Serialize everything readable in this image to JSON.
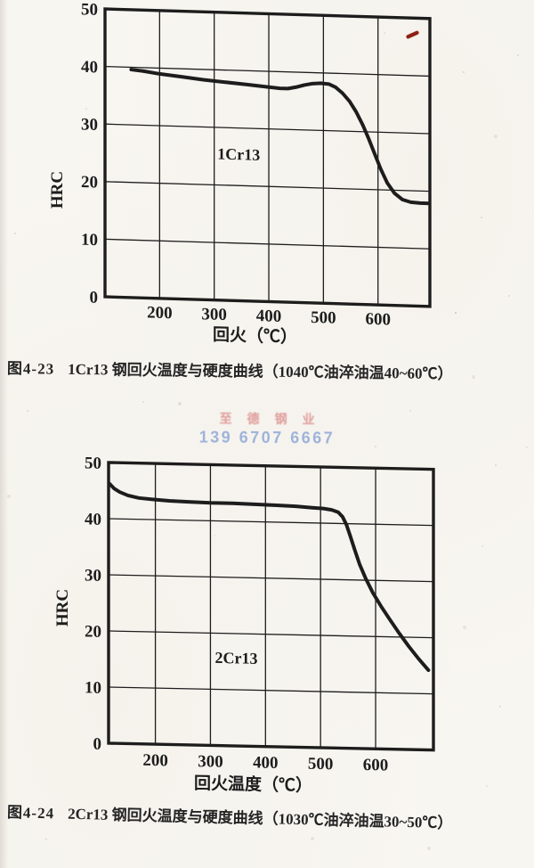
{
  "page": {
    "paper_color": "#f8f6f1",
    "ink_color": "#1d1d1d"
  },
  "chart_data": [
    {
      "type": "line",
      "title": "1Cr13 钢回火温度与硬度曲线",
      "xlabel": "回火（℃）",
      "ylabel": "HRC",
      "xlim": [
        100,
        695
      ],
      "ylim": [
        0,
        50
      ],
      "xticks": [
        200,
        300,
        400,
        500,
        600
      ],
      "yticks": [
        0,
        10,
        20,
        30,
        40,
        50
      ],
      "grid": true,
      "legend_position": "none",
      "series_label": {
        "text": "1Cr13",
        "x": 345,
        "y": 24.5
      },
      "series": [
        {
          "name": "1Cr13",
          "x": [
            148,
            170,
            200,
            240,
            280,
            320,
            360,
            395,
            420,
            435,
            450,
            465,
            480,
            495,
            510,
            522,
            535,
            548,
            560,
            572,
            583,
            594,
            605,
            617,
            630,
            645,
            660,
            677,
            693
          ],
          "y": [
            39.6,
            39.4,
            39.0,
            38.6,
            38.2,
            37.9,
            37.6,
            37.3,
            37.1,
            37.1,
            37.4,
            37.8,
            38.1,
            38.2,
            38.1,
            37.6,
            36.6,
            35.2,
            33.4,
            31.2,
            28.8,
            26.2,
            23.6,
            21.2,
            19.5,
            18.4,
            18.0,
            17.9,
            17.9
          ]
        }
      ]
    },
    {
      "type": "line",
      "title": "2Cr13 钢回火温度与硬度曲线",
      "xlabel": "回火温度（℃）",
      "ylabel": "HRC",
      "xlim": [
        115,
        705
      ],
      "ylim": [
        0,
        50
      ],
      "xticks": [
        200,
        300,
        400,
        500,
        600
      ],
      "yticks": [
        0,
        10,
        20,
        30,
        40,
        50
      ],
      "grid": true,
      "legend_position": "none",
      "series_label": {
        "text": "2Cr13",
        "x": 347,
        "y": 14.7
      },
      "series": [
        {
          "name": "2Cr13",
          "x": [
            117,
            125,
            135,
            150,
            170,
            195,
            225,
            260,
            300,
            340,
            380,
            420,
            455,
            485,
            505,
            520,
            532,
            540,
            547,
            554,
            562,
            571,
            582,
            595,
            610,
            625,
            642,
            660,
            678,
            696
          ],
          "y": [
            46.2,
            45.4,
            44.8,
            44.2,
            43.8,
            43.6,
            43.4,
            43.3,
            43.2,
            43.2,
            43.1,
            43.0,
            42.9,
            42.7,
            42.6,
            42.4,
            42.0,
            41.2,
            39.8,
            37.8,
            35.4,
            32.8,
            30.3,
            27.8,
            25.4,
            23.2,
            20.8,
            18.4,
            16.2,
            14.2
          ]
        }
      ]
    }
  ],
  "captions": [
    {
      "number": "图4-23",
      "text": "1Cr13 钢回火温度与硬度曲线（1040℃油淬油温40~60℃）"
    },
    {
      "number": "图4-24",
      "text": "2Cr13 钢回火温度与硬度曲线（1030℃油淬油温30~50℃）"
    }
  ],
  "watermark": {
    "company": "至德钢业",
    "phone": "139 6707 6667",
    "company_color": "rgba(205,85,85,0.55)",
    "phone_color": "rgba(100,135,205,0.6)"
  },
  "annotations": {
    "pen_mark_color": "#8e1f12"
  }
}
